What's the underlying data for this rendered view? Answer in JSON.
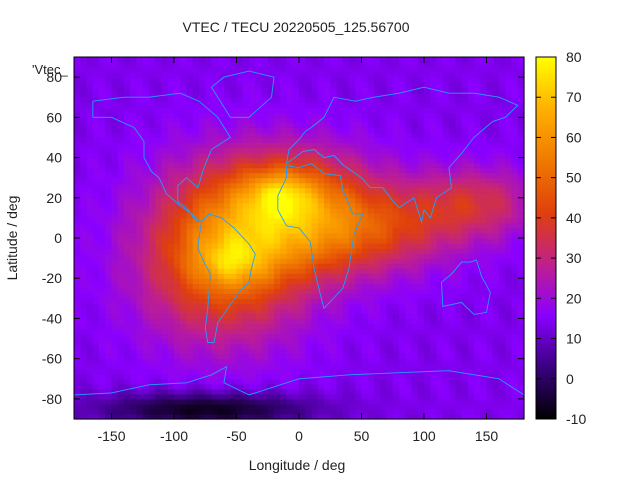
{
  "chart_data": {
    "type": "heatmap",
    "title": "VTEC / TECU 20220505_125.56700",
    "xlabel": "Longitude / deg",
    "ylabel": "Latitude / deg",
    "key_label": "'Vtec_",
    "xlim": [
      -180,
      180
    ],
    "ylim": [
      -90,
      90
    ],
    "x_ticks": [
      -150,
      -100,
      -50,
      0,
      50,
      100,
      150
    ],
    "y_ticks": [
      -80,
      -60,
      -40,
      -20,
      0,
      20,
      40,
      60,
      80
    ],
    "colorbar": {
      "range": [
        -10,
        80
      ],
      "ticks": [
        -10,
        0,
        10,
        20,
        30,
        40,
        50,
        60,
        70,
        80
      ],
      "colors": [
        "#000000",
        "#3a0080",
        "#8a00ff",
        "#c0208a",
        "#e0400c",
        "#f07a00",
        "#ffb000",
        "#ffff00"
      ]
    },
    "grid": false,
    "background_value": 14,
    "anomalies": [
      {
        "name": "americas-equatorial",
        "lon": -60,
        "lat": -8,
        "sigma_lon": 45,
        "sigma_lat": 28,
        "amplitude": 40
      },
      {
        "name": "africa-north",
        "lon": 0,
        "lat": 18,
        "sigma_lon": 45,
        "sigma_lat": 18,
        "amplitude": 34
      },
      {
        "name": "africa-south",
        "lon": 5,
        "lat": -5,
        "sigma_lon": 50,
        "sigma_lat": 15,
        "amplitude": 12
      },
      {
        "name": "indian-ocean",
        "lon": 70,
        "lat": 5,
        "sigma_lon": 45,
        "sigma_lat": 14,
        "amplitude": 18
      },
      {
        "name": "asia-pacific",
        "lon": 140,
        "lat": 18,
        "sigma_lon": 35,
        "sigma_lat": 12,
        "amplitude": 20
      },
      {
        "name": "peak-crest-north",
        "lon": -15,
        "lat": 22,
        "sigma_lon": 18,
        "sigma_lat": 8,
        "amplitude": 18
      },
      {
        "name": "peak-crest-south",
        "lon": -55,
        "lat": -12,
        "sigma_lon": 18,
        "sigma_lat": 8,
        "amplitude": 14
      },
      {
        "name": "antarctic-hole",
        "lon": -75,
        "lat": -85,
        "sigma_lon": 60,
        "sigma_lat": 6,
        "amplitude": -22
      }
    ]
  }
}
